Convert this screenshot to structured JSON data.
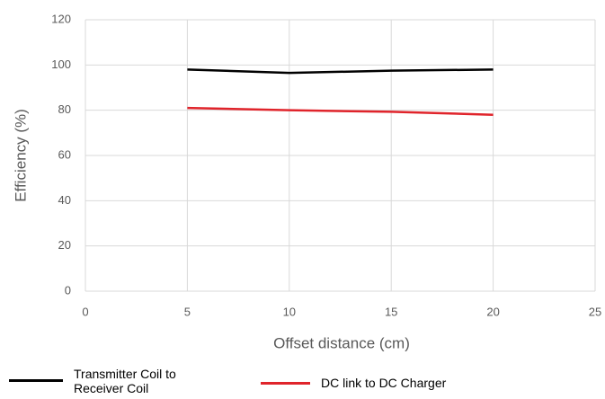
{
  "chart_data": {
    "type": "line",
    "x_label": "Offset distance (cm)",
    "y_label": "Efficiency (%)",
    "x": [
      5,
      10,
      15,
      20
    ],
    "series": [
      {
        "name": "Transmitter Coil to Receiver Coil",
        "color": "#000000",
        "values": [
          98,
          96.5,
          97.5,
          98
        ]
      },
      {
        "name": "DC link to DC Charger",
        "color": "#e0242b",
        "values": [
          81,
          80,
          79.3,
          78
        ]
      }
    ],
    "xlim": [
      0,
      25
    ],
    "xticks": [
      0,
      5,
      10,
      15,
      20,
      25
    ],
    "ylim": [
      0,
      120
    ],
    "yticks": [
      0,
      20,
      40,
      60,
      80,
      100,
      120
    ],
    "grid": true,
    "legend": "bottom"
  }
}
